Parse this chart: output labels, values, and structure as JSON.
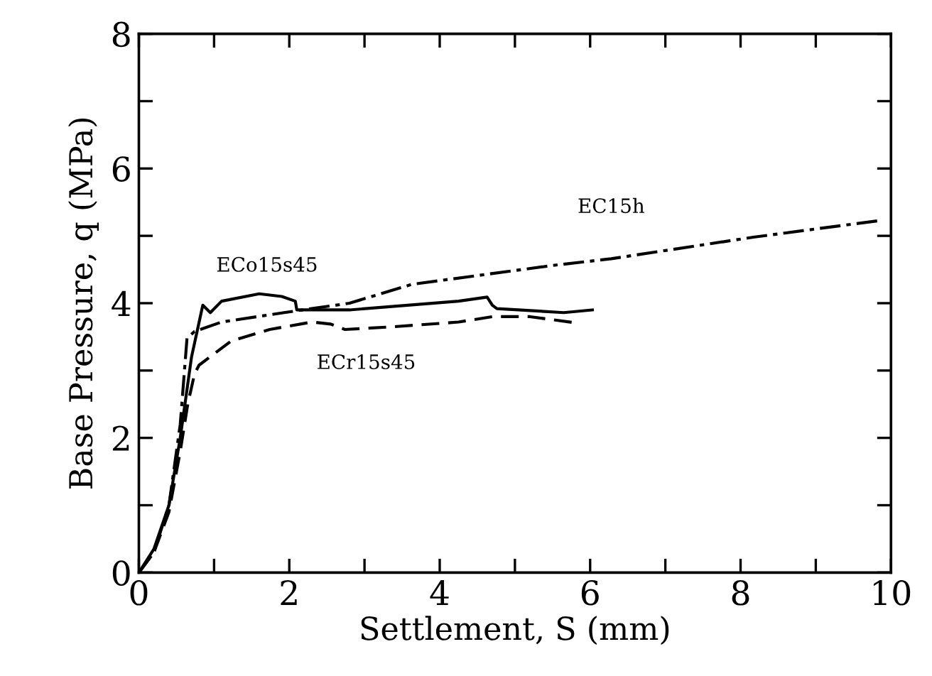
{
  "chart_data": {
    "type": "line",
    "xlabel": "Settlement, S (mm)",
    "ylabel": "Base Pressure, q (MPa)",
    "xlim": [
      0,
      10
    ],
    "ylim": [
      0,
      8
    ],
    "xticks": [
      0,
      {
        "value": 1,
        "label": null
      },
      2,
      {
        "value": 3,
        "label": null
      },
      4,
      {
        "value": 5,
        "label": null
      },
      6,
      {
        "value": 7,
        "label": null
      },
      8,
      {
        "value": 9,
        "label": null
      },
      10
    ],
    "yticks": [
      0,
      {
        "value": 1,
        "label": null
      },
      2,
      {
        "value": 3,
        "label": null
      },
      4,
      {
        "value": 5,
        "label": null
      },
      6,
      {
        "value": 7,
        "label": null
      },
      8
    ],
    "grid": false,
    "marker": "none",
    "series": [
      {
        "name": "ECo15s45",
        "color": "#000000",
        "line_style": "solid",
        "x": [
          0,
          0.2,
          0.4,
          0.55,
          0.7,
          0.85,
          0.95,
          1.1,
          1.6,
          1.9,
          2.08,
          2.1,
          2.8,
          4.25,
          4.63,
          4.7,
          4.76,
          5.65,
          6.03
        ],
        "values": [
          0,
          0.35,
          1.0,
          2.0,
          3.2,
          3.97,
          3.86,
          4.03,
          4.14,
          4.1,
          4.03,
          3.9,
          3.9,
          4.03,
          4.09,
          3.97,
          3.92,
          3.86,
          3.9
        ]
      },
      {
        "name": "ECr15s45",
        "color": "#000000",
        "line_style": "dashed",
        "x": [
          0,
          0.2,
          0.4,
          0.55,
          0.65,
          0.74,
          0.8,
          1.23,
          1.74,
          2.3,
          2.55,
          2.74,
          3.38,
          4.25,
          4.7,
          5.2,
          5.8
        ],
        "values": [
          0,
          0.3,
          0.9,
          1.8,
          2.5,
          2.95,
          3.08,
          3.44,
          3.61,
          3.72,
          3.69,
          3.61,
          3.65,
          3.72,
          3.8,
          3.8,
          3.71
        ]
      },
      {
        "name": "EC15h",
        "color": "#000000",
        "line_style": "dashdot",
        "x": [
          0,
          0.2,
          0.4,
          0.55,
          0.64,
          0.74,
          1.1,
          1.93,
          2.8,
          3.63,
          5.5,
          6.28,
          8.17,
          9.87
        ],
        "values": [
          0,
          0.3,
          1.0,
          2.2,
          3.48,
          3.58,
          3.72,
          3.86,
          4.0,
          4.28,
          4.56,
          4.66,
          4.98,
          5.23
        ]
      }
    ]
  }
}
